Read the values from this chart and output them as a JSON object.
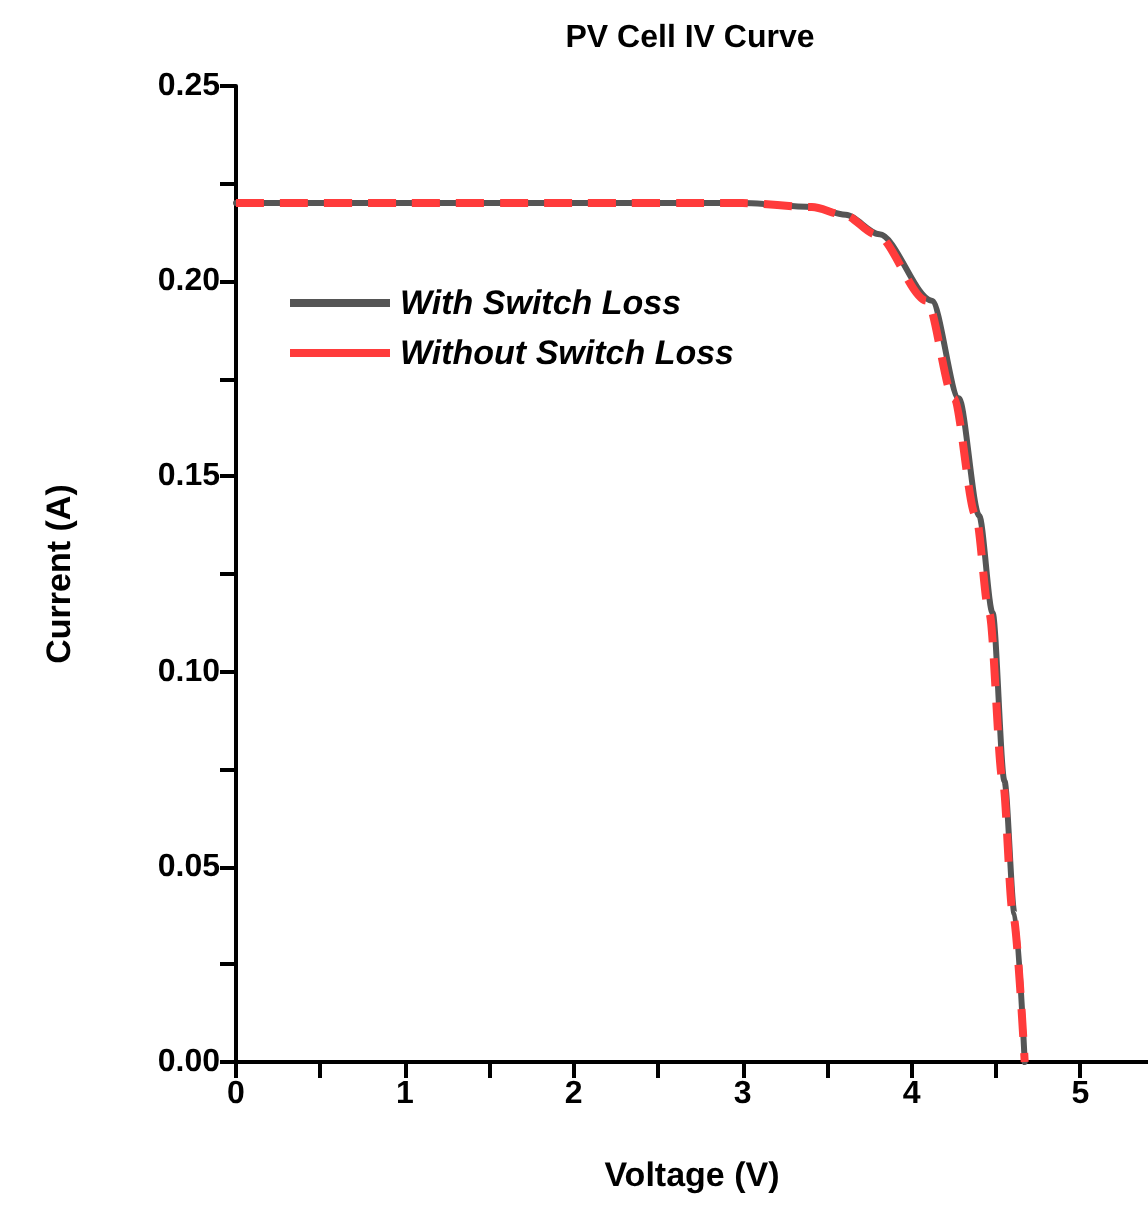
{
  "chart_data": {
    "type": "line",
    "title": "PV Cell IV Curve",
    "xlabel": "Voltage (V)",
    "ylabel": "Current (A)",
    "xlim": [
      0,
      5.4
    ],
    "xticks": [
      0,
      {
        "value": 0.5,
        "label": null
      },
      1,
      {
        "value": 1.5,
        "label": null
      },
      2,
      {
        "value": 2.5,
        "label": null
      },
      3,
      {
        "value": 3.5,
        "label": null
      },
      4,
      {
        "value": 4.5,
        "label": null
      },
      5
    ],
    "ylim": [
      0,
      0.25
    ],
    "yticks": [
      {
        "value": 0,
        "label": "0.00"
      },
      {
        "value": 0.025,
        "label": null
      },
      {
        "value": 0.05,
        "label": "0.05"
      },
      {
        "value": 0.075,
        "label": null
      },
      {
        "value": 0.1,
        "label": "0.10"
      },
      {
        "value": 0.125,
        "label": null
      },
      {
        "value": 0.15,
        "label": "0.15"
      },
      {
        "value": 0.175,
        "label": null
      },
      {
        "value": 0.2,
        "label": "0.20"
      },
      {
        "value": 0.225,
        "label": null
      },
      {
        "value": 0.25,
        "label": "0.25"
      }
    ],
    "grid": false,
    "legend": "top left",
    "marker": "none",
    "series": [
      {
        "name": "With Switch Loss",
        "color": "#555555",
        "line_style": "solid",
        "x": [
          0,
          1,
          2,
          3,
          3.41,
          3.61,
          3.81,
          4.12,
          4.28,
          4.4,
          4.48,
          4.55,
          4.61,
          4.67
        ],
        "values": [
          0.22,
          0.22,
          0.22,
          0.22,
          0.219,
          0.217,
          0.212,
          0.195,
          0.17,
          0.14,
          0.115,
          0.072,
          0.038,
          0
        ]
      },
      {
        "name": "Without Switch Loss",
        "color": "#ff3b3b",
        "line_style": "dashed",
        "x": [
          0,
          1,
          2,
          3,
          3.41,
          3.6,
          3.79,
          4.09,
          4.25,
          4.38,
          4.46,
          4.54,
          4.6,
          4.67
        ],
        "values": [
          0.22,
          0.22,
          0.22,
          0.22,
          0.219,
          0.217,
          0.212,
          0.195,
          0.17,
          0.14,
          0.115,
          0.072,
          0.038,
          0
        ]
      }
    ]
  }
}
